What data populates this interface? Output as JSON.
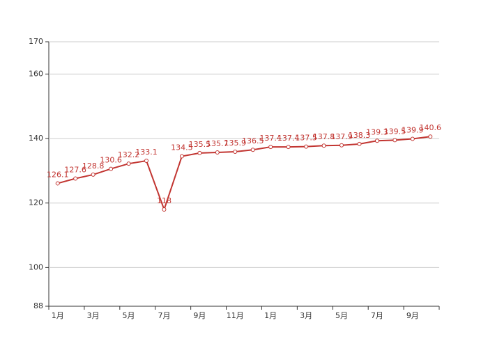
{
  "chart_data": {
    "type": "line",
    "categories": [
      "1月",
      null,
      "3月",
      null,
      "5月",
      null,
      "7月",
      null,
      "9月",
      null,
      "11月",
      null,
      "1月",
      null,
      "3月",
      null,
      "5月",
      null,
      "7月",
      null,
      "9月",
      null
    ],
    "series": [
      {
        "color": "#c23531",
        "values": [
          126.1,
          127.6,
          128.8,
          130.6,
          132.2,
          133.1,
          118,
          134.5,
          135.5,
          135.7,
          135.9,
          136.5,
          137.4,
          137.4,
          137.5,
          137.8,
          137.9,
          138.3,
          139.3,
          139.5,
          139.9,
          140.6
        ]
      }
    ],
    "ylim": [
      88,
      170
    ],
    "yticks": [
      88,
      100,
      120,
      140,
      160,
      170
    ],
    "grid": true
  }
}
